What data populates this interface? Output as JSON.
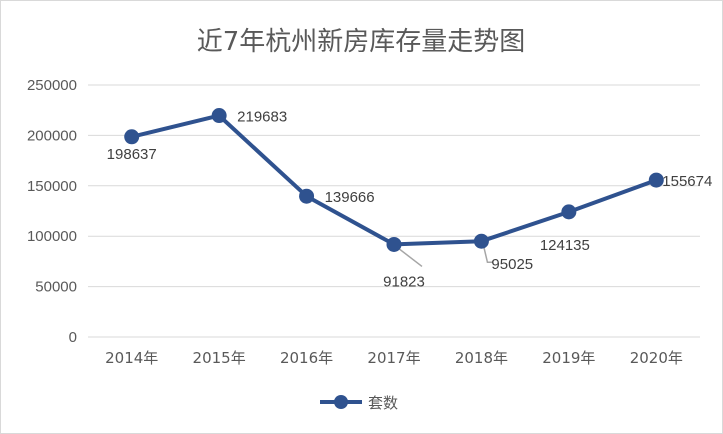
{
  "chart_data": {
    "type": "line",
    "title": "近7年杭州新房库存量走势图",
    "categories": [
      "2014年",
      "2015年",
      "2016年",
      "2017年",
      "2018年",
      "2019年",
      "2020年"
    ],
    "series": [
      {
        "name": "套数",
        "values": [
          198637,
          219683,
          139666,
          91823,
          95025,
          124135,
          155674
        ]
      }
    ],
    "data_labels": [
      "198637",
      "219683",
      "139666",
      "91823",
      "95025",
      "124135",
      "155674"
    ],
    "ylim": [
      0,
      250000
    ],
    "yticks": [
      "0",
      "50000",
      "100000",
      "150000",
      "200000",
      "250000"
    ],
    "grid": true,
    "legend_position": "bottom",
    "line_color": "#2F528F"
  }
}
